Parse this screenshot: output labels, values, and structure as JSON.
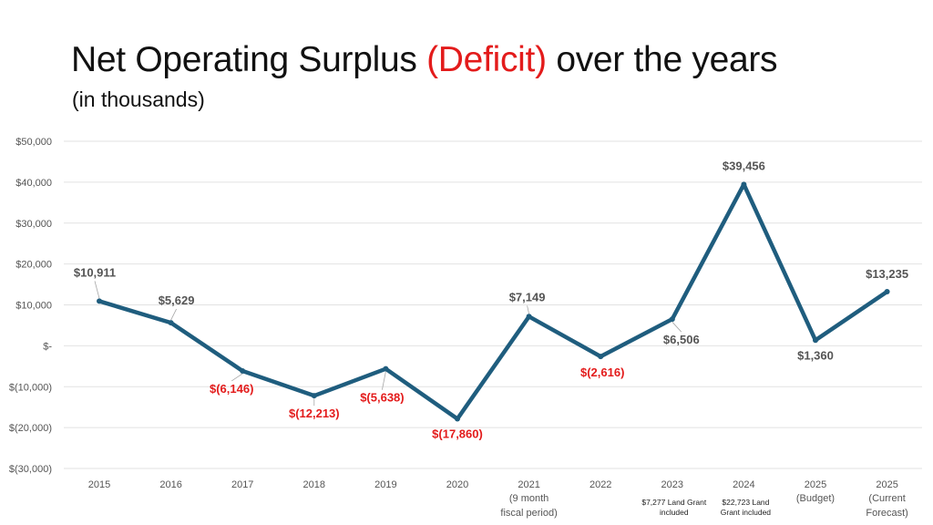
{
  "title": {
    "main": "Net Operating Surplus",
    "highlight": "(Deficit)",
    "rest": "over the years",
    "subtitle": "(in thousands)"
  },
  "colors": {
    "line": "#1f5d7e",
    "negative_label": "#e31b1b",
    "positive_label": "#555555",
    "grid": "#e2e2e2"
  },
  "chart_data": {
    "type": "line",
    "categories": [
      {
        "label": "2015",
        "sub": [],
        "note": []
      },
      {
        "label": "2016",
        "sub": [],
        "note": []
      },
      {
        "label": "2017",
        "sub": [],
        "note": []
      },
      {
        "label": "2018",
        "sub": [],
        "note": []
      },
      {
        "label": "2019",
        "sub": [],
        "note": []
      },
      {
        "label": "2020",
        "sub": [],
        "note": []
      },
      {
        "label": "2021",
        "sub": [
          "(9 month",
          "fiscal period)"
        ],
        "note": []
      },
      {
        "label": "2022",
        "sub": [],
        "note": []
      },
      {
        "label": "2023",
        "sub": [],
        "note": [
          "$7,277 Land Grant",
          "included"
        ]
      },
      {
        "label": "2024",
        "sub": [],
        "note": [
          "$22,723 Land",
          "Grant included"
        ]
      },
      {
        "label": "2025",
        "sub": [
          "(Budget)"
        ],
        "note": []
      },
      {
        "label": "2025",
        "sub": [
          "(Current",
          "Forecast)"
        ],
        "note": []
      }
    ],
    "values": [
      10911,
      5629,
      -6146,
      -12213,
      -5638,
      -17860,
      7149,
      -2616,
      6506,
      39456,
      1360,
      13235
    ],
    "data_labels": [
      "$10,911",
      "$5,629",
      "$(6,146)",
      "$(12,213)",
      "$(5,638)",
      "$(17,860)",
      "$7,149",
      "$(2,616)",
      "$6,506",
      "$39,456",
      "$1,360",
      "$13,235"
    ],
    "ylim": [
      -30000,
      50000
    ],
    "yticks": [
      {
        "value": 50000,
        "label": "$50,000"
      },
      {
        "value": 40000,
        "label": "$40,000"
      },
      {
        "value": 30000,
        "label": "$30,000"
      },
      {
        "value": 20000,
        "label": "$20,000"
      },
      {
        "value": 10000,
        "label": "$10,000"
      },
      {
        "value": 0,
        "label": "$-"
      },
      {
        "value": -10000,
        "label": "$(10,000)"
      },
      {
        "value": -20000,
        "label": "$(20,000)"
      },
      {
        "value": -30000,
        "label": "$(30,000)"
      }
    ],
    "grid": true,
    "legend": "none"
  }
}
